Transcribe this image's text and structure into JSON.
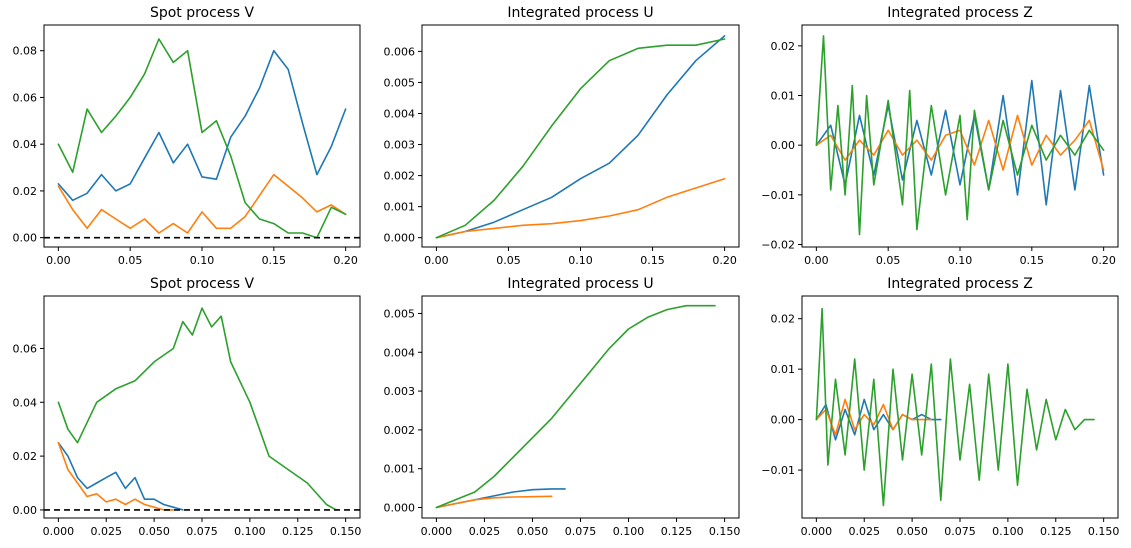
{
  "colors": {
    "series1": "#1f77b4",
    "series2": "#ff7f0e",
    "series3": "#2ca02c"
  },
  "chart_data": [
    {
      "type": "line",
      "title": "Spot process V",
      "xlim": [
        -0.01,
        0.21
      ],
      "ylim": [
        -0.004,
        0.091
      ],
      "xticks": [
        0.0,
        0.05,
        0.1,
        0.15,
        0.2
      ],
      "xtick_labels": [
        "0.00",
        "0.05",
        "0.10",
        "0.15",
        "0.20"
      ],
      "yticks": [
        0.0,
        0.02,
        0.04,
        0.06,
        0.08
      ],
      "ytick_labels": [
        "0.00",
        "0.02",
        "0.04",
        "0.06",
        "0.08"
      ],
      "reference_line": {
        "y": 0,
        "style": "dashed",
        "color": "#000000"
      },
      "series": [
        {
          "color": "#1f77b4",
          "x": [
            0,
            0.01,
            0.02,
            0.03,
            0.04,
            0.05,
            0.06,
            0.07,
            0.08,
            0.09,
            0.1,
            0.11,
            0.12,
            0.13,
            0.14,
            0.15,
            0.16,
            0.17,
            0.18,
            0.19,
            0.2
          ],
          "y": [
            0.023,
            0.016,
            0.019,
            0.027,
            0.02,
            0.023,
            0.034,
            0.045,
            0.032,
            0.04,
            0.026,
            0.025,
            0.043,
            0.052,
            0.064,
            0.08,
            0.072,
            0.049,
            0.027,
            0.039,
            0.055
          ]
        },
        {
          "color": "#ff7f0e",
          "x": [
            0,
            0.01,
            0.02,
            0.03,
            0.04,
            0.05,
            0.06,
            0.07,
            0.08,
            0.09,
            0.1,
            0.11,
            0.12,
            0.13,
            0.14,
            0.15,
            0.16,
            0.17,
            0.18,
            0.19,
            0.2
          ],
          "y": [
            0.022,
            0.012,
            0.004,
            0.012,
            0.008,
            0.004,
            0.008,
            0.002,
            0.006,
            0.002,
            0.011,
            0.004,
            0.004,
            0.009,
            0.018,
            0.027,
            0.022,
            0.017,
            0.011,
            0.014,
            0.01
          ]
        },
        {
          "color": "#2ca02c",
          "x": [
            0,
            0.01,
            0.02,
            0.03,
            0.04,
            0.05,
            0.06,
            0.07,
            0.08,
            0.09,
            0.1,
            0.11,
            0.12,
            0.13,
            0.14,
            0.15,
            0.16,
            0.17,
            0.18,
            0.19,
            0.2
          ],
          "y": [
            0.04,
            0.028,
            0.055,
            0.045,
            0.052,
            0.06,
            0.07,
            0.085,
            0.075,
            0.08,
            0.045,
            0.05,
            0.035,
            0.015,
            0.008,
            0.006,
            0.002,
            0.002,
            0.0,
            0.013,
            0.01
          ]
        }
      ]
    },
    {
      "type": "line",
      "title": "Integrated process U",
      "xlim": [
        -0.01,
        0.21
      ],
      "ylim": [
        -0.0003,
        0.00685
      ],
      "xticks": [
        0.0,
        0.05,
        0.1,
        0.15,
        0.2
      ],
      "xtick_labels": [
        "0.00",
        "0.05",
        "0.10",
        "0.15",
        "0.20"
      ],
      "yticks": [
        0.0,
        0.001,
        0.002,
        0.003,
        0.004,
        0.005,
        0.006
      ],
      "ytick_labels": [
        "0.000",
        "0.001",
        "0.002",
        "0.003",
        "0.004",
        "0.005",
        "0.006"
      ],
      "series": [
        {
          "color": "#1f77b4",
          "x": [
            0,
            0.02,
            0.04,
            0.06,
            0.08,
            0.1,
            0.12,
            0.14,
            0.16,
            0.18,
            0.2
          ],
          "y": [
            0.0,
            0.0002,
            0.0005,
            0.0009,
            0.0013,
            0.0019,
            0.0024,
            0.0033,
            0.0046,
            0.0057,
            0.0065
          ]
        },
        {
          "color": "#ff7f0e",
          "x": [
            0,
            0.02,
            0.04,
            0.06,
            0.08,
            0.1,
            0.12,
            0.14,
            0.16,
            0.18,
            0.2
          ],
          "y": [
            0.0,
            0.0002,
            0.0003,
            0.0004,
            0.00045,
            0.00055,
            0.0007,
            0.0009,
            0.0013,
            0.0016,
            0.0019
          ]
        },
        {
          "color": "#2ca02c",
          "x": [
            0,
            0.02,
            0.04,
            0.06,
            0.08,
            0.1,
            0.12,
            0.14,
            0.16,
            0.18,
            0.2
          ],
          "y": [
            0.0,
            0.0004,
            0.0012,
            0.0023,
            0.0036,
            0.0048,
            0.0057,
            0.0061,
            0.0062,
            0.0062,
            0.0064
          ]
        }
      ]
    },
    {
      "type": "line",
      "title": "Integrated process Z",
      "xlim": [
        -0.01,
        0.21
      ],
      "ylim": [
        -0.0205,
        0.0242
      ],
      "xticks": [
        0.0,
        0.05,
        0.1,
        0.15,
        0.2
      ],
      "xtick_labels": [
        "0.00",
        "0.05",
        "0.10",
        "0.15",
        "0.20"
      ],
      "yticks": [
        -0.02,
        -0.01,
        0.0,
        0.01,
        0.02
      ],
      "ytick_labels": [
        "−0.02",
        "−0.01",
        "0.00",
        "0.01",
        "0.02"
      ],
      "series": [
        {
          "color": "#1f77b4",
          "x": [
            0,
            0.01,
            0.02,
            0.03,
            0.04,
            0.05,
            0.06,
            0.07,
            0.08,
            0.09,
            0.1,
            0.11,
            0.12,
            0.13,
            0.14,
            0.15,
            0.16,
            0.17,
            0.18,
            0.19,
            0.2
          ],
          "y": [
            0.0,
            0.004,
            -0.008,
            0.006,
            -0.006,
            0.008,
            -0.007,
            0.005,
            -0.006,
            0.007,
            -0.008,
            0.006,
            -0.009,
            0.01,
            -0.01,
            0.013,
            -0.012,
            0.011,
            -0.009,
            0.012,
            -0.006
          ]
        },
        {
          "color": "#ff7f0e",
          "x": [
            0,
            0.01,
            0.02,
            0.03,
            0.04,
            0.05,
            0.06,
            0.07,
            0.08,
            0.09,
            0.1,
            0.11,
            0.12,
            0.13,
            0.14,
            0.15,
            0.16,
            0.17,
            0.18,
            0.19,
            0.2
          ],
          "y": [
            0.0,
            0.002,
            -0.003,
            0.001,
            -0.002,
            0.003,
            -0.002,
            0.001,
            -0.003,
            0.002,
            0.003,
            -0.004,
            0.005,
            -0.005,
            0.006,
            -0.004,
            0.002,
            -0.002,
            0.001,
            0.005,
            -0.005
          ]
        },
        {
          "color": "#2ca02c",
          "x": [
            0,
            0.005,
            0.01,
            0.015,
            0.02,
            0.025,
            0.03,
            0.035,
            0.04,
            0.05,
            0.06,
            0.065,
            0.07,
            0.08,
            0.09,
            0.1,
            0.105,
            0.11,
            0.12,
            0.13,
            0.14,
            0.15,
            0.16,
            0.17,
            0.18,
            0.19,
            0.2
          ],
          "y": [
            0.0,
            0.022,
            -0.009,
            0.008,
            -0.01,
            0.012,
            -0.018,
            0.01,
            -0.008,
            0.009,
            -0.012,
            0.011,
            -0.017,
            0.008,
            -0.01,
            0.006,
            -0.015,
            0.007,
            -0.009,
            0.005,
            -0.006,
            0.004,
            -0.003,
            0.002,
            -0.002,
            0.003,
            -0.001
          ]
        }
      ]
    },
    {
      "type": "line",
      "title": "Spot process V",
      "xlim": [
        -0.0075,
        0.1575
      ],
      "ylim": [
        -0.003,
        0.0795
      ],
      "xticks": [
        0.0,
        0.025,
        0.05,
        0.075,
        0.1,
        0.125,
        0.15
      ],
      "xtick_labels": [
        "0.000",
        "0.025",
        "0.050",
        "0.075",
        "0.100",
        "0.125",
        "0.150"
      ],
      "yticks": [
        0.0,
        0.02,
        0.04,
        0.06
      ],
      "ytick_labels": [
        "0.00",
        "0.02",
        "0.04",
        "0.06"
      ],
      "reference_line": {
        "y": 0,
        "style": "dashed",
        "color": "#000000"
      },
      "series": [
        {
          "color": "#1f77b4",
          "x": [
            0,
            0.005,
            0.01,
            0.015,
            0.02,
            0.025,
            0.03,
            0.035,
            0.04,
            0.045,
            0.05,
            0.055,
            0.06,
            0.065
          ],
          "y": [
            0.025,
            0.02,
            0.012,
            0.008,
            0.01,
            0.012,
            0.014,
            0.008,
            0.012,
            0.004,
            0.004,
            0.002,
            0.001,
            0.0
          ]
        },
        {
          "color": "#ff7f0e",
          "x": [
            0,
            0.005,
            0.01,
            0.015,
            0.02,
            0.025,
            0.03,
            0.035,
            0.04,
            0.045,
            0.05,
            0.055,
            0.06
          ],
          "y": [
            0.025,
            0.015,
            0.01,
            0.005,
            0.006,
            0.003,
            0.004,
            0.002,
            0.004,
            0.002,
            0.001,
            0.0,
            0.0
          ]
        },
        {
          "color": "#2ca02c",
          "x": [
            0,
            0.005,
            0.01,
            0.02,
            0.03,
            0.04,
            0.05,
            0.06,
            0.065,
            0.07,
            0.075,
            0.08,
            0.085,
            0.09,
            0.1,
            0.105,
            0.11,
            0.12,
            0.13,
            0.14,
            0.145
          ],
          "y": [
            0.04,
            0.03,
            0.025,
            0.04,
            0.045,
            0.048,
            0.055,
            0.06,
            0.07,
            0.065,
            0.075,
            0.068,
            0.072,
            0.055,
            0.04,
            0.03,
            0.02,
            0.015,
            0.01,
            0.002,
            0.0
          ]
        }
      ]
    },
    {
      "type": "line",
      "title": "Integrated process U",
      "xlim": [
        -0.0075,
        0.1575
      ],
      "ylim": [
        -0.00027,
        0.00545
      ],
      "xticks": [
        0.0,
        0.025,
        0.05,
        0.075,
        0.1,
        0.125,
        0.15
      ],
      "xtick_labels": [
        "0.000",
        "0.025",
        "0.050",
        "0.075",
        "0.100",
        "0.125",
        "0.150"
      ],
      "yticks": [
        0.0,
        0.001,
        0.002,
        0.003,
        0.004,
        0.005
      ],
      "ytick_labels": [
        "0.000",
        "0.001",
        "0.002",
        "0.003",
        "0.004",
        "0.005"
      ],
      "series": [
        {
          "color": "#1f77b4",
          "x": [
            0,
            0.01,
            0.02,
            0.03,
            0.04,
            0.05,
            0.06,
            0.067
          ],
          "y": [
            0.0,
            0.0001,
            0.0002,
            0.0003,
            0.0004,
            0.00046,
            0.00048,
            0.00048
          ]
        },
        {
          "color": "#ff7f0e",
          "x": [
            0,
            0.01,
            0.02,
            0.03,
            0.04,
            0.05,
            0.06
          ],
          "y": [
            0.0,
            0.0001,
            0.0002,
            0.00025,
            0.00027,
            0.00028,
            0.00029
          ]
        },
        {
          "color": "#2ca02c",
          "x": [
            0,
            0.01,
            0.02,
            0.03,
            0.04,
            0.05,
            0.06,
            0.07,
            0.08,
            0.09,
            0.1,
            0.11,
            0.12,
            0.13,
            0.14,
            0.145
          ],
          "y": [
            0.0,
            0.0002,
            0.0004,
            0.0008,
            0.0013,
            0.0018,
            0.0023,
            0.0029,
            0.0035,
            0.0041,
            0.0046,
            0.0049,
            0.0051,
            0.0052,
            0.0052,
            0.0052
          ]
        }
      ]
    },
    {
      "type": "line",
      "title": "Integrated process Z",
      "xlim": [
        -0.0075,
        0.1575
      ],
      "ylim": [
        -0.0195,
        0.0245
      ],
      "xticks": [
        0.0,
        0.025,
        0.05,
        0.075,
        0.1,
        0.125,
        0.15
      ],
      "xtick_labels": [
        "0.000",
        "0.025",
        "0.050",
        "0.075",
        "0.100",
        "0.125",
        "0.150"
      ],
      "yticks": [
        -0.01,
        0.0,
        0.01,
        0.02
      ],
      "ytick_labels": [
        "−0.01",
        "0.00",
        "0.01",
        "0.02"
      ],
      "series": [
        {
          "color": "#1f77b4",
          "x": [
            0,
            0.005,
            0.01,
            0.015,
            0.02,
            0.025,
            0.03,
            0.035,
            0.04,
            0.045,
            0.05,
            0.055,
            0.06,
            0.065
          ],
          "y": [
            0.0,
            0.003,
            -0.004,
            0.002,
            -0.003,
            0.004,
            -0.002,
            0.001,
            -0.002,
            0.001,
            0.0,
            0.001,
            0.0,
            0.0
          ]
        },
        {
          "color": "#ff7f0e",
          "x": [
            0,
            0.005,
            0.01,
            0.015,
            0.02,
            0.025,
            0.03,
            0.035,
            0.04,
            0.045,
            0.05,
            0.055,
            0.06
          ],
          "y": [
            0.0,
            0.002,
            -0.003,
            0.004,
            -0.002,
            0.001,
            -0.001,
            0.003,
            -0.002,
            0.001,
            0.0,
            0.0,
            0.0
          ]
        },
        {
          "color": "#2ca02c",
          "x": [
            0,
            0.003,
            0.006,
            0.01,
            0.015,
            0.02,
            0.025,
            0.03,
            0.035,
            0.04,
            0.045,
            0.05,
            0.055,
            0.06,
            0.065,
            0.07,
            0.075,
            0.08,
            0.085,
            0.09,
            0.095,
            0.1,
            0.105,
            0.11,
            0.115,
            0.12,
            0.125,
            0.13,
            0.135,
            0.14,
            0.145
          ],
          "y": [
            0.0,
            0.022,
            -0.009,
            0.008,
            -0.007,
            0.012,
            -0.01,
            0.008,
            -0.017,
            0.01,
            -0.008,
            0.009,
            -0.007,
            0.011,
            -0.016,
            0.012,
            -0.008,
            0.007,
            -0.012,
            0.009,
            -0.01,
            0.011,
            -0.013,
            0.006,
            -0.006,
            0.004,
            -0.004,
            0.002,
            -0.002,
            0.0,
            0.0
          ]
        }
      ]
    }
  ]
}
